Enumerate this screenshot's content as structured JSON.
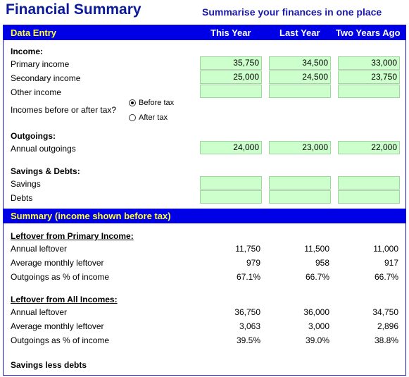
{
  "title": "Financial Summary",
  "subtitle": "Summarise your finances in one place",
  "data_entry": {
    "header": "Data Entry",
    "columns": [
      "This Year",
      "Last Year",
      "Two Years Ago"
    ],
    "income_heading": "Income:",
    "primary_label": "Primary income",
    "primary": [
      "35,750",
      "34,500",
      "33,000"
    ],
    "secondary_label": "Secondary income",
    "secondary": [
      "25,000",
      "24,500",
      "23,750"
    ],
    "other_label": "Other income",
    "other": [
      "",
      "",
      ""
    ],
    "tax_question": "Incomes before or after tax?",
    "tax_options": [
      "Before tax",
      "After tax"
    ],
    "tax_selected": "Before tax",
    "outgoings_heading": "Outgoings:",
    "annual_outgoings_label": "Annual outgoings",
    "annual_outgoings": [
      "24,000",
      "23,000",
      "22,000"
    ],
    "savings_heading": "Savings & Debts:",
    "savings_label": "Savings",
    "savings": [
      "",
      "",
      ""
    ],
    "debts_label": "Debts",
    "debts": [
      "",
      "",
      ""
    ]
  },
  "summary": {
    "header": "Summary (income shown before tax)",
    "primary_heading": "Leftover from Primary Income:",
    "primary_rows": [
      {
        "label": "Annual leftover",
        "values": [
          "11,750",
          "11,500",
          "11,000"
        ]
      },
      {
        "label": "Average monthly leftover",
        "values": [
          "979",
          "958",
          "917"
        ]
      },
      {
        "label": "Outgoings as % of income",
        "values": [
          "67.1%",
          "66.7%",
          "66.7%"
        ]
      }
    ],
    "all_heading": "Leftover from All Incomes:",
    "all_rows": [
      {
        "label": "Annual leftover",
        "values": [
          "36,750",
          "36,000",
          "34,750"
        ]
      },
      {
        "label": "Average monthly leftover",
        "values": [
          "3,063",
          "3,000",
          "2,896"
        ]
      },
      {
        "label": "Outgoings as % of income",
        "values": [
          "39.5%",
          "39.0%",
          "38.8%"
        ]
      }
    ],
    "savings_less_debts": "Savings less debts"
  }
}
